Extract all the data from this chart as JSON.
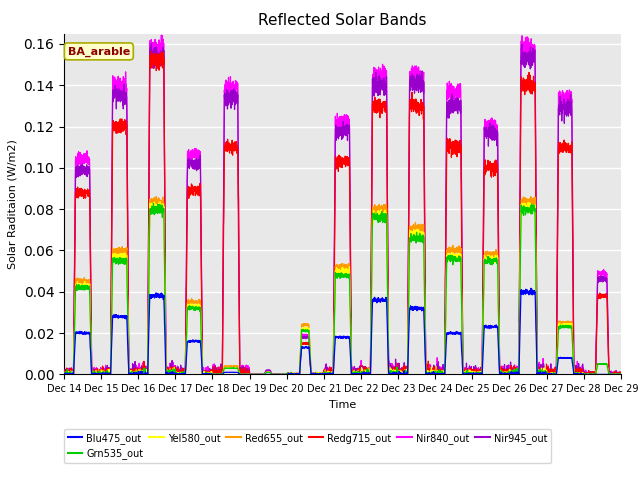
{
  "title": "Reflected Solar Bands",
  "xlabel": "Time",
  "ylabel": "Solar Raditaion (W/m2)",
  "annotation": "BA_arable",
  "ylim": [
    0,
    0.165
  ],
  "series_colors": {
    "Blu475_out": "#0000ff",
    "Grn535_out": "#00cc00",
    "Yel580_out": "#ffff00",
    "Red655_out": "#ff9900",
    "Redg715_out": "#ff0000",
    "Nir840_out": "#ff00ff",
    "Nir945_out": "#9900cc"
  },
  "background_color": "#e8e8e8",
  "tick_days": [
    14,
    15,
    16,
    17,
    18,
    19,
    20,
    21,
    22,
    23,
    24,
    25,
    26,
    27,
    28,
    29
  ],
  "nir840_peaks": [
    0.104,
    0.14,
    0.158,
    0.106,
    0.139,
    0.002,
    0.019,
    0.122,
    0.145,
    0.145,
    0.137,
    0.12,
    0.158,
    0.134,
    0.049
  ],
  "nir945_peaks": [
    0.099,
    0.135,
    0.153,
    0.102,
    0.134,
    0.002,
    0.018,
    0.118,
    0.14,
    0.141,
    0.13,
    0.117,
    0.153,
    0.129,
    0.046
  ],
  "redg715_peaks": [
    0.088,
    0.12,
    0.152,
    0.089,
    0.11,
    0.001,
    0.015,
    0.103,
    0.13,
    0.13,
    0.11,
    0.1,
    0.14,
    0.11,
    0.038
  ],
  "red655_peaks": [
    0.045,
    0.06,
    0.083,
    0.035,
    0.004,
    0.001,
    0.024,
    0.052,
    0.08,
    0.071,
    0.06,
    0.058,
    0.083,
    0.025,
    0.005
  ],
  "yel580_peaks": [
    0.043,
    0.057,
    0.081,
    0.033,
    0.003,
    0.001,
    0.022,
    0.05,
    0.077,
    0.068,
    0.057,
    0.056,
    0.081,
    0.024,
    0.005
  ],
  "grn535_peaks": [
    0.042,
    0.055,
    0.08,
    0.032,
    0.003,
    0.001,
    0.021,
    0.048,
    0.076,
    0.066,
    0.056,
    0.055,
    0.08,
    0.023,
    0.005
  ],
  "blu475_peaks": [
    0.02,
    0.028,
    0.038,
    0.016,
    0.001,
    0.0,
    0.013,
    0.018,
    0.036,
    0.032,
    0.02,
    0.023,
    0.04,
    0.008,
    0.0
  ],
  "day_widths": [
    0.38,
    0.38,
    0.38,
    0.35,
    0.36,
    0.1,
    0.2,
    0.38,
    0.38,
    0.38,
    0.38,
    0.36,
    0.38,
    0.36,
    0.25
  ]
}
